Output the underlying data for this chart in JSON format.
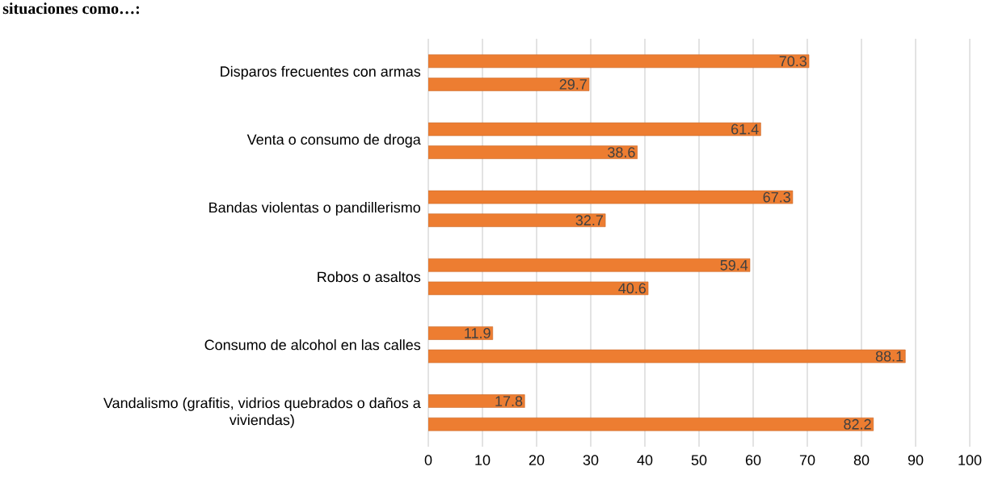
{
  "chart_data": {
    "type": "bar",
    "orientation": "horizontal",
    "title": "situaciones como…:",
    "categories": [
      "Disparos frecuentes con armas",
      "Venta o consumo de droga",
      "Bandas violentas o pandillerismo",
      "Robos o asaltos",
      "Consumo de alcohol en las calles",
      "Vandalismo (grafitis, vidrios quebrados o daños a viviendas)"
    ],
    "series": [
      {
        "color": "#ed7d31",
        "values": [
          70.3,
          61.4,
          67.3,
          59.4,
          11.9,
          17.8
        ]
      },
      {
        "color": "#ed7d31",
        "values": [
          29.7,
          38.6,
          32.7,
          40.6,
          88.1,
          82.2
        ]
      }
    ],
    "xlim": [
      0,
      100
    ],
    "xticks": [
      0,
      10,
      20,
      30,
      40,
      50,
      60,
      70,
      80,
      90,
      100
    ],
    "grid": "x",
    "data_labels": true
  }
}
